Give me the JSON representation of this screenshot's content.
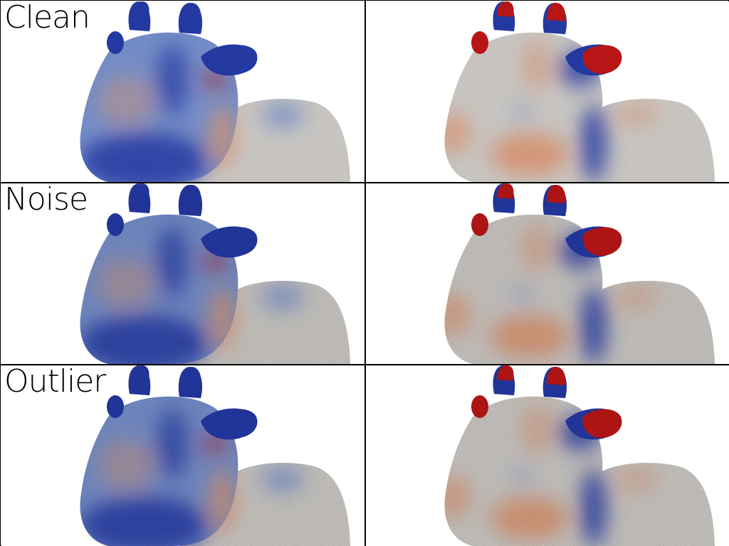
{
  "rows": [
    {
      "label": "Clean"
    },
    {
      "label": "Noise"
    },
    {
      "label": "Outlier"
    }
  ],
  "colors": {
    "cold": "#2a3fb0",
    "cool": "#7f9ad8",
    "neutral": "#d9d6d2",
    "warm": "#e8a07c",
    "hot": "#c81a1a",
    "border": "#000000",
    "background": "#ffffff"
  }
}
